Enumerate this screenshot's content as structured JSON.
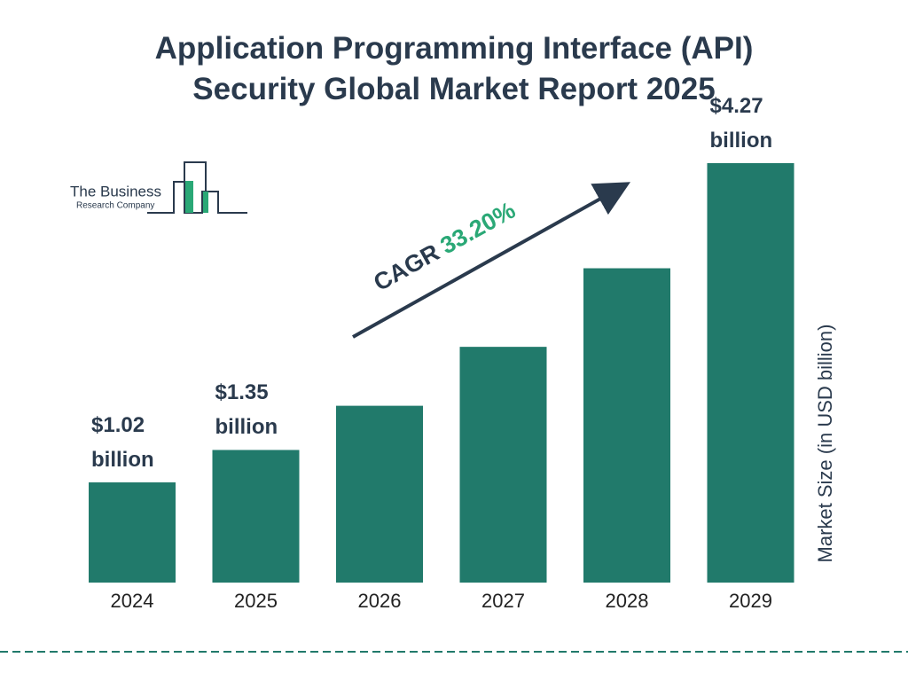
{
  "chart_data": {
    "type": "bar",
    "title": "Application Programming Interface (API) Security Global Market Report 2025",
    "categories": [
      "2024",
      "2025",
      "2026",
      "2027",
      "2028",
      "2029"
    ],
    "values": [
      1.02,
      1.35,
      1.8,
      2.4,
      3.2,
      4.27
    ],
    "value_labels": [
      "$1.02 billion",
      "$1.35 billion",
      null,
      null,
      null,
      "$4.27 billion"
    ],
    "color": "#217a6b",
    "y_axis_label": "Market Size (in USD billion)",
    "cagr_label": "CAGR",
    "cagr_value": "33.20%",
    "logo": {
      "line1": "The Business",
      "line2": "Research Company"
    }
  }
}
